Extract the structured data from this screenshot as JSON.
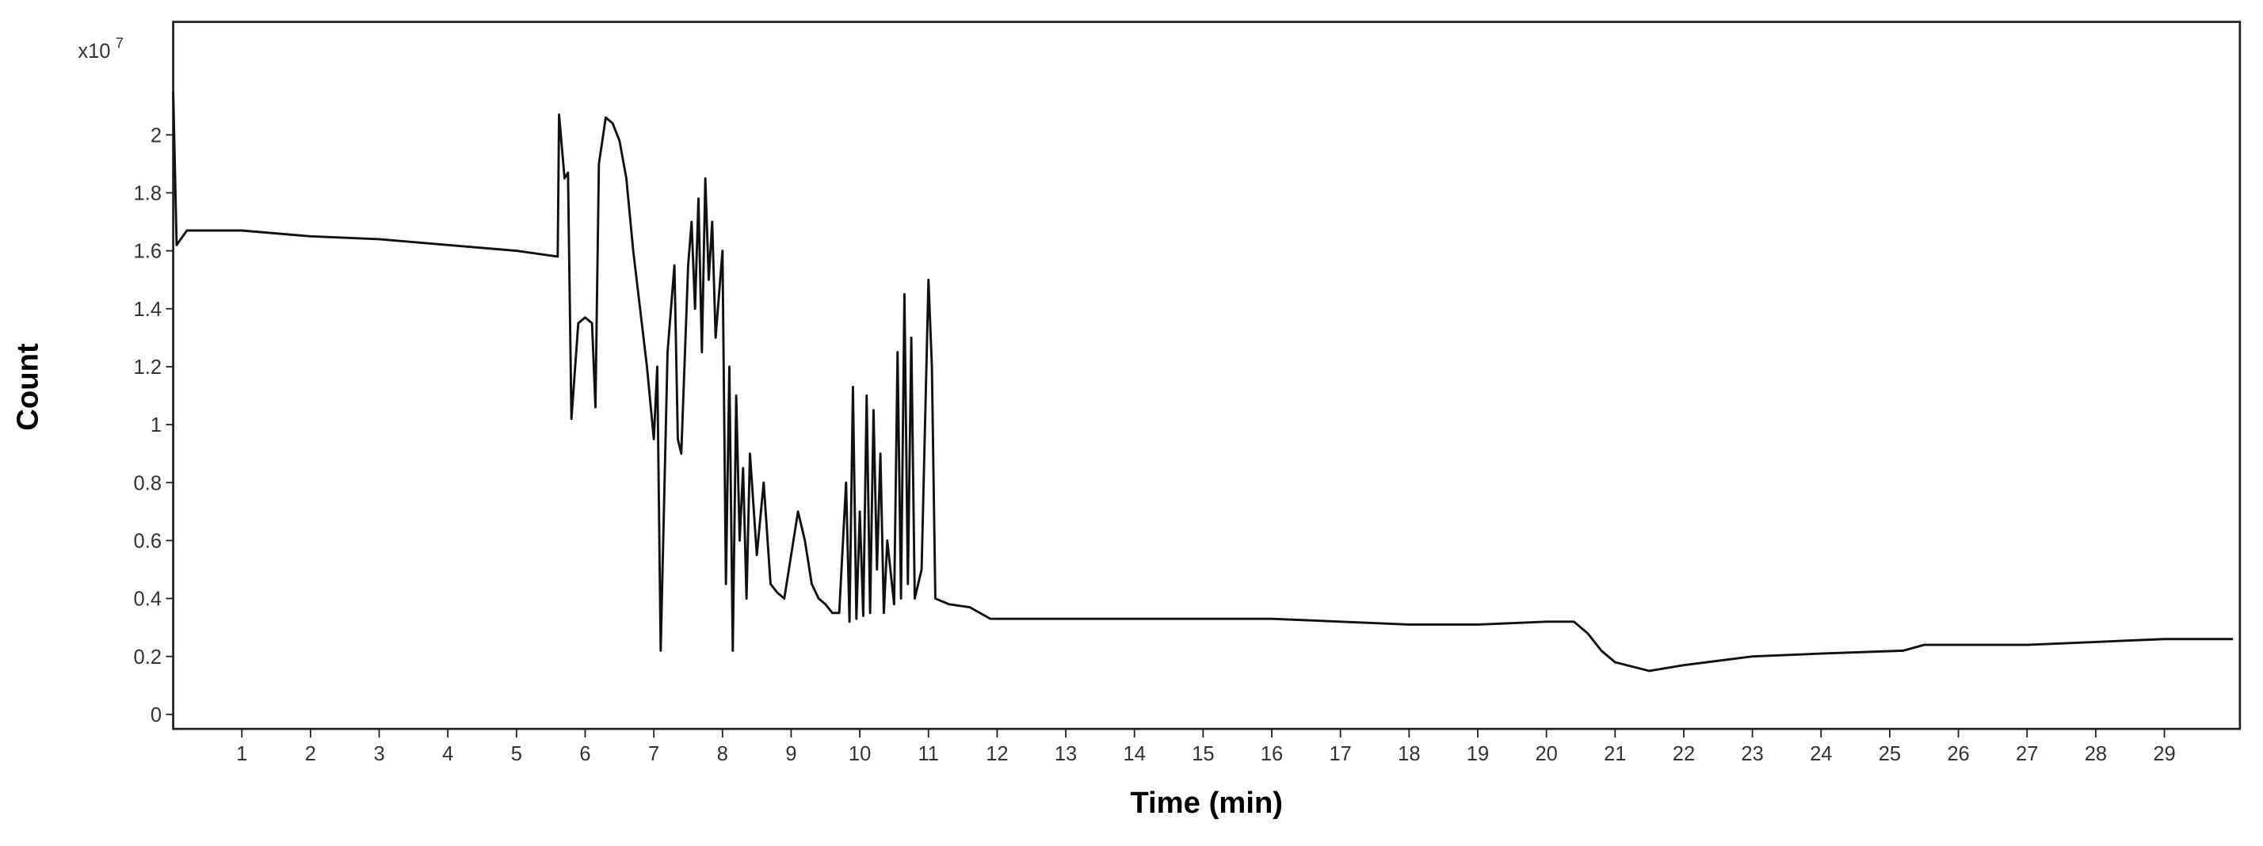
{
  "chart_data": {
    "type": "line",
    "multiplier": "x10",
    "multiplier_exponent": "7",
    "xlabel": "Time (min)",
    "ylabel": "Count",
    "xlim": [
      0,
      30.1
    ],
    "ylim": [
      -0.05,
      2.39
    ],
    "xticks": [
      1,
      2,
      3,
      4,
      5,
      6,
      7,
      8,
      9,
      10,
      11,
      12,
      13,
      14,
      15,
      16,
      17,
      18,
      19,
      20,
      21,
      22,
      23,
      24,
      25,
      26,
      27,
      28,
      29
    ],
    "yticks": [
      0,
      0.2,
      0.4,
      0.6,
      0.8,
      1,
      1.2,
      1.4,
      1.6,
      1.8,
      2
    ],
    "series": [
      {
        "color": "#111111",
        "x": [
          0,
          0.05,
          0.2,
          1,
          2,
          3,
          4,
          5,
          5.6,
          5.62,
          5.7,
          5.75,
          5.8,
          5.9,
          6.0,
          6.1,
          6.15,
          6.2,
          6.3,
          6.4,
          6.5,
          6.6,
          6.7,
          6.8,
          6.9,
          7.0,
          7.05,
          7.1,
          7.2,
          7.3,
          7.35,
          7.4,
          7.5,
          7.55,
          7.6,
          7.65,
          7.7,
          7.75,
          7.8,
          7.85,
          7.9,
          8.0,
          8.05,
          8.1,
          8.15,
          8.2,
          8.25,
          8.3,
          8.35,
          8.4,
          8.5,
          8.6,
          8.7,
          8.8,
          8.9,
          9.0,
          9.1,
          9.2,
          9.3,
          9.4,
          9.5,
          9.6,
          9.7,
          9.8,
          9.85,
          9.9,
          9.95,
          10.0,
          10.05,
          10.1,
          10.15,
          10.2,
          10.25,
          10.3,
          10.35,
          10.4,
          10.5,
          10.55,
          10.6,
          10.65,
          10.7,
          10.75,
          10.8,
          10.9,
          11.0,
          11.05,
          11.1,
          11.3,
          11.6,
          11.9,
          12,
          13,
          14,
          15,
          16,
          17,
          18,
          19,
          20,
          20.4,
          20.6,
          20.8,
          21,
          21.5,
          22,
          23,
          24,
          25.2,
          25.5,
          26,
          27,
          28,
          29,
          30
        ],
        "values": [
          2.15,
          1.62,
          1.67,
          1.67,
          1.65,
          1.64,
          1.62,
          1.6,
          1.58,
          2.07,
          1.85,
          1.87,
          1.02,
          1.35,
          1.37,
          1.35,
          1.06,
          1.9,
          2.06,
          2.04,
          1.98,
          1.85,
          1.6,
          1.4,
          1.2,
          0.95,
          1.2,
          0.22,
          1.25,
          1.55,
          0.95,
          0.9,
          1.55,
          1.7,
          1.4,
          1.78,
          1.25,
          1.85,
          1.5,
          1.7,
          1.3,
          1.6,
          0.45,
          1.2,
          0.22,
          1.1,
          0.6,
          0.85,
          0.4,
          0.9,
          0.55,
          0.8,
          0.45,
          0.42,
          0.4,
          0.55,
          0.7,
          0.6,
          0.45,
          0.4,
          0.38,
          0.35,
          0.35,
          0.8,
          0.32,
          1.13,
          0.33,
          0.7,
          0.34,
          1.1,
          0.35,
          1.05,
          0.5,
          0.9,
          0.35,
          0.6,
          0.38,
          1.25,
          0.4,
          1.45,
          0.45,
          1.3,
          0.4,
          0.5,
          1.5,
          1.2,
          0.4,
          0.38,
          0.37,
          0.33,
          0.33,
          0.33,
          0.33,
          0.33,
          0.33,
          0.32,
          0.31,
          0.31,
          0.32,
          0.32,
          0.28,
          0.22,
          0.18,
          0.15,
          0.17,
          0.2,
          0.21,
          0.22,
          0.24,
          0.24,
          0.24,
          0.25,
          0.26,
          0.26
        ]
      }
    ]
  }
}
